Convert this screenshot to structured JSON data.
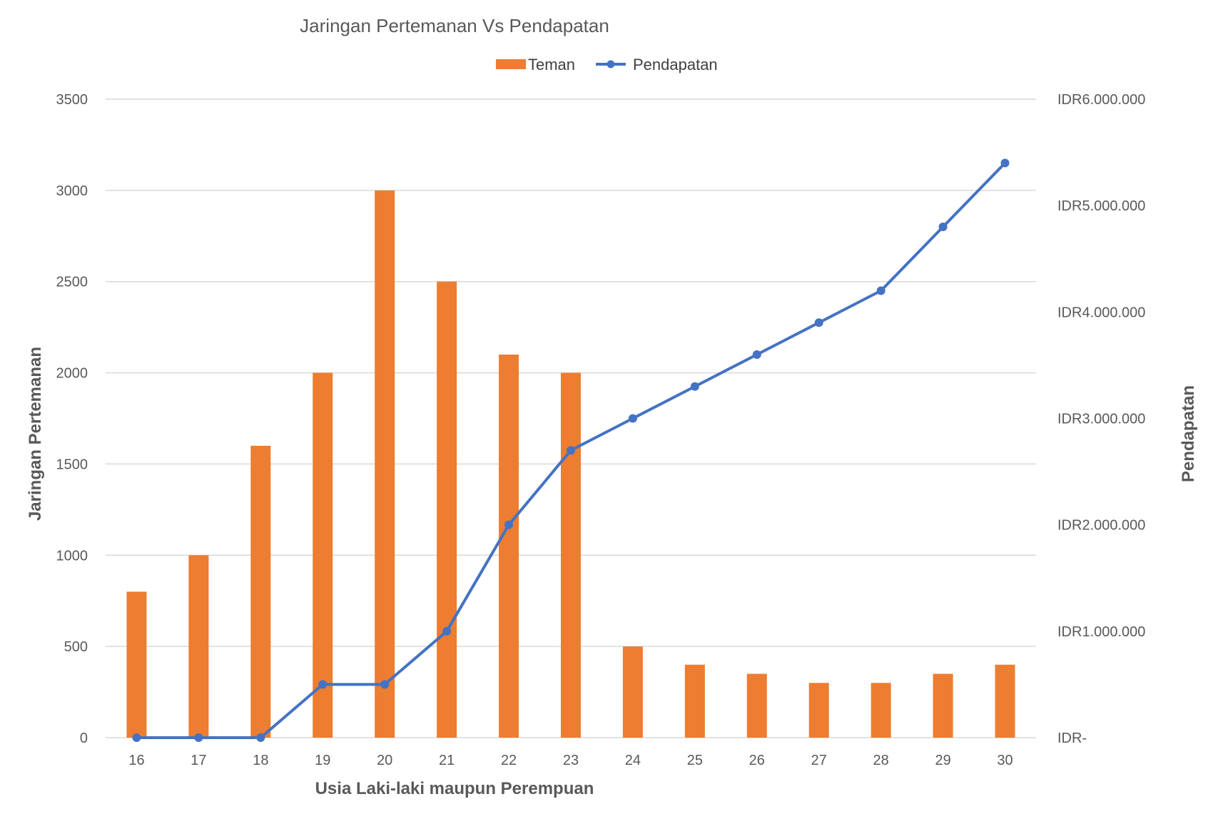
{
  "chart_data": {
    "type": "bar+line",
    "title": "Jaringan Pertemanan Vs Pendapatan",
    "xlabel": "Usia Laki-laki maupun Perempuan",
    "ylabel": "Jaringan Pertemanan",
    "y2label": "Pendapatan",
    "categories": [
      "16",
      "17",
      "18",
      "19",
      "20",
      "21",
      "22",
      "23",
      "24",
      "25",
      "26",
      "27",
      "28",
      "29",
      "30"
    ],
    "ylim": [
      0,
      3500
    ],
    "yticks": [
      "0",
      "500",
      "1000",
      "1500",
      "2000",
      "2500",
      "3000",
      "3500"
    ],
    "y2lim": [
      0,
      6000000
    ],
    "y2ticks": [
      "IDR-",
      "IDR1.000.000",
      "IDR2.000.000",
      "IDR3.000.000",
      "IDR4.000.000",
      "IDR5.000.000",
      "IDR6.000.000"
    ],
    "grid": true,
    "legend_position": "top",
    "series": [
      {
        "name": "Teman",
        "type": "bar",
        "axis": "left",
        "color": "#ED7D31",
        "values": [
          800,
          1000,
          1600,
          2000,
          3000,
          2500,
          2100,
          2000,
          500,
          400,
          350,
          300,
          300,
          350,
          400
        ]
      },
      {
        "name": "Pendapatan",
        "type": "line",
        "axis": "right",
        "color": "#4472C4",
        "values": [
          0,
          0,
          0,
          500000,
          500000,
          1000000,
          2000000,
          2700000,
          3000000,
          3300000,
          3600000,
          3900000,
          4200000,
          4800000,
          5400000
        ]
      }
    ]
  }
}
